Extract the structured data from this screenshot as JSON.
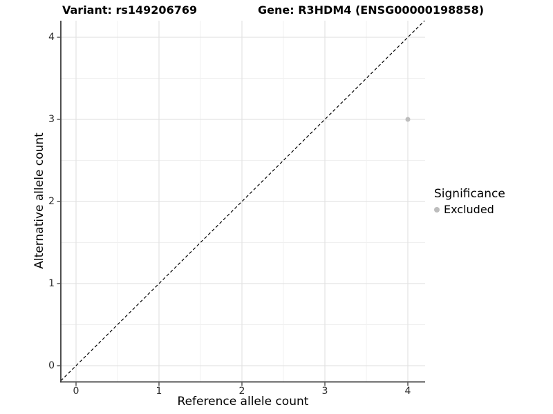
{
  "chart_data": {
    "type": "scatter",
    "title_left": "Variant: rs149206769",
    "title_right": "Gene: R3HDM4 (ENSG00000198858)",
    "xlabel": "Reference allele count",
    "ylabel": "Alternative allele count",
    "x_ticks": [
      0,
      1,
      2,
      3,
      4
    ],
    "y_ticks": [
      0,
      1,
      2,
      3,
      4
    ],
    "xlim": [
      -0.18,
      4.21
    ],
    "ylim": [
      -0.19,
      4.2
    ],
    "grid": {
      "major": true,
      "minor": true
    },
    "identity_line": {
      "equation": "y = x",
      "style": "dashed",
      "color": "#000000"
    },
    "series": [
      {
        "name": "Excluded",
        "color": "#bdbdbd",
        "points": [
          {
            "x": 4,
            "y": 3
          }
        ]
      }
    ],
    "legend": {
      "title": "Significance",
      "position": "right",
      "entries": [
        {
          "label": "Excluded",
          "color": "#bdbdbd",
          "marker": "circle"
        }
      ]
    }
  },
  "colors": {
    "background": "#ffffff",
    "grid_major": "#e3e3e3",
    "grid_minor": "#f0f0f0",
    "axis_line": "#3a3a3a",
    "tick_text": "#2b2b2b",
    "point": "#bdbdbd"
  }
}
